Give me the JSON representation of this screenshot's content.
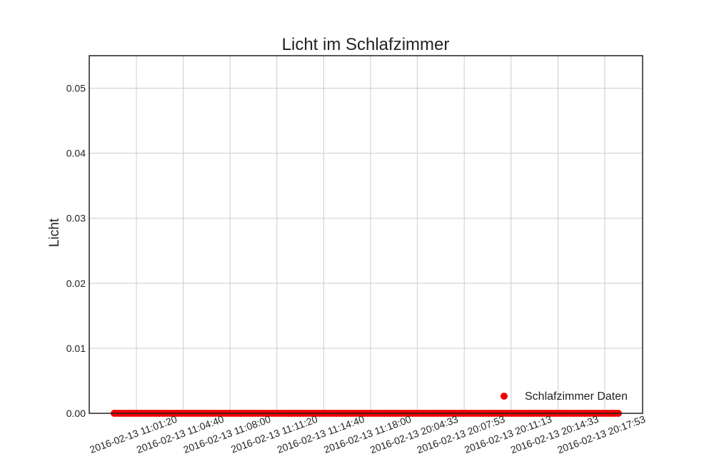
{
  "chart_data": {
    "type": "scatter",
    "title": "Licht im Schlafzimmer",
    "xlabel": "",
    "ylabel": "Licht",
    "ylim": [
      0,
      0.055
    ],
    "yticks": [
      0.0,
      0.01,
      0.02,
      0.03,
      0.04,
      0.05
    ],
    "ytick_labels": [
      "0.00",
      "0.01",
      "0.02",
      "0.03",
      "0.04",
      "0.05"
    ],
    "xtick_labels": [
      "2016-02-13 11:01:20",
      "2016-02-13 11:04:40",
      "2016-02-13 11:08:00",
      "2016-02-13 11:11:20",
      "2016-02-13 11:14:40",
      "2016-02-13 11:18:00",
      "2016-02-13 20:04:33",
      "2016-02-13 20:07:53",
      "2016-02-13 20:11:13",
      "2016-02-13 20:14:33",
      "2016-02-13 20:17:53"
    ],
    "grid": true,
    "legend_position": "lower-right",
    "series": [
      {
        "name": "Schlafzimmer Daten",
        "color": "#ee0000",
        "y_constant": 0.0,
        "x_range_label": [
          "2016-02-13 11:01:20",
          "2016-02-13 20:17:53"
        ]
      }
    ]
  }
}
